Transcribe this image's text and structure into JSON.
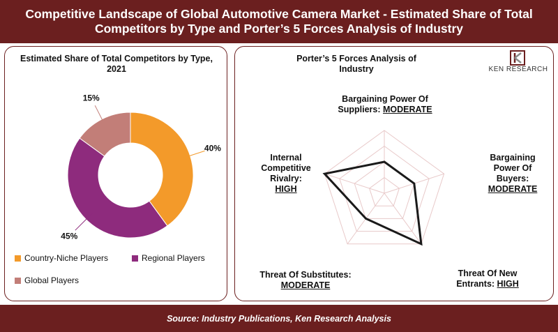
{
  "header": {
    "title": "Competitive Landscape of Global Automotive Camera Market - Estimated Share of Total Competitors by Type and Porter’s 5 Forces Analysis of Industry"
  },
  "footer": {
    "source": "Source: Industry Publications, Ken Research Analysis"
  },
  "logo": {
    "text": "KEN RESEARCH",
    "icon": "ken-research-k-logo"
  },
  "colors": {
    "header_bg": "#6b1f1f",
    "country_niche": "#f39a2a",
    "regional": "#8e2b7d",
    "global": "#c27e78",
    "radar_line": "#1a1a1a",
    "radar_grid": "#e8c9c9"
  },
  "chart_data": [
    {
      "type": "pie",
      "subtype": "donut",
      "title": "Estimated Share of Total Competitors by Type, 2021",
      "categories": [
        "Country-Niche Players",
        "Regional Players",
        "Global Players"
      ],
      "values": [
        40,
        45,
        15
      ],
      "labels": [
        "40%",
        "45%",
        "15%"
      ],
      "legend_position": "bottom"
    },
    {
      "type": "radar",
      "title": "Porter’s 5 Forces Analysis of Industry",
      "axes": [
        {
          "name": "Bargaining Power Of Suppliers:",
          "level": "MODERATE"
        },
        {
          "name": "Bargaining Power Of Buyers:",
          "level": "MODERATE"
        },
        {
          "name": "Threat Of New Entrants:",
          "level": "HIGH"
        },
        {
          "name": "Threat Of Substitutes:",
          "level": "MODERATE"
        },
        {
          "name": "Internal Competitive Rivalry:",
          "level": "HIGH"
        }
      ],
      "scale_levels": 4,
      "values": [
        2,
        2,
        4,
        2,
        4
      ]
    }
  ]
}
